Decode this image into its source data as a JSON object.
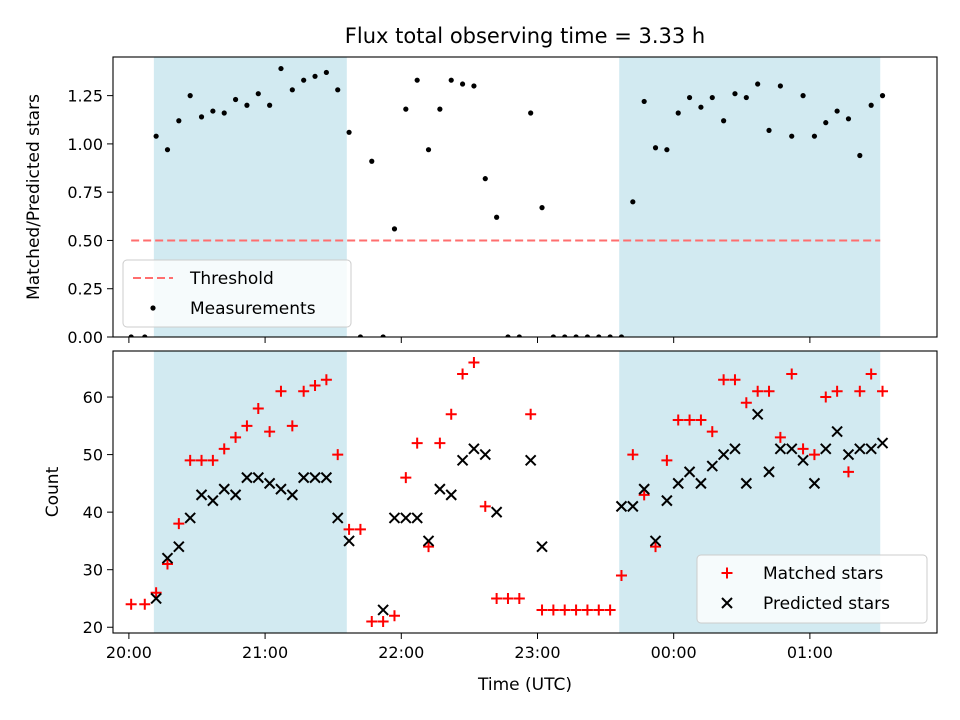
{
  "title": "Flux total observing time = 3.33 h",
  "xlabel": "Time (UTC)",
  "colors": {
    "shade": "#add8e6",
    "threshold": "#ff6e6e",
    "measurement": "#000000",
    "matched": "#ff0000",
    "predicted": "#000000"
  },
  "chart_data": [
    {
      "type": "scatter",
      "ylabel": "Matched/Predicted stars",
      "xlim": [
        "19:53",
        "01:56"
      ],
      "ylim": [
        0,
        1.45
      ],
      "yticks": [
        "0.00",
        "0.25",
        "0.50",
        "0.75",
        "1.00",
        "1.25"
      ],
      "xticks": [
        "20:00",
        "21:00",
        "22:00",
        "23:00",
        "00:00",
        "01:00"
      ],
      "shaded_spans": [
        [
          "20:11",
          "21:36"
        ],
        [
          "23:36",
          "01:31"
        ]
      ],
      "legend": {
        "placement": "lower-left",
        "entries": [
          "Threshold",
          "Measurements"
        ]
      },
      "series": [
        {
          "name": "Threshold",
          "kind": "dashed-line",
          "x": [
            "20:01",
            "01:31"
          ],
          "y": [
            0.5,
            0.5
          ]
        },
        {
          "name": "Measurements",
          "kind": "dots",
          "x": [
            "20:01",
            "20:07",
            "20:12",
            "20:17",
            "20:22",
            "20:27",
            "20:32",
            "20:37",
            "20:42",
            "20:47",
            "20:52",
            "20:57",
            "21:02",
            "21:07",
            "21:12",
            "21:17",
            "21:22",
            "21:27",
            "21:32",
            "21:37",
            "21:42",
            "21:47",
            "21:52",
            "21:57",
            "22:02",
            "22:07",
            "22:12",
            "22:17",
            "22:22",
            "22:27",
            "22:32",
            "22:37",
            "22:42",
            "22:47",
            "22:52",
            "22:57",
            "23:02",
            "23:07",
            "23:12",
            "23:17",
            "23:22",
            "23:27",
            "23:32",
            "23:37",
            "23:42",
            "23:47",
            "23:52",
            "23:57",
            "00:02",
            "00:07",
            "00:12",
            "00:17",
            "00:22",
            "00:27",
            "00:32",
            "00:37",
            "00:42",
            "00:47",
            "00:52",
            "00:57",
            "01:02",
            "01:07",
            "01:12",
            "01:17",
            "01:22",
            "01:27",
            "01:32"
          ],
          "y": [
            0.0,
            0.0,
            1.04,
            0.97,
            1.12,
            1.25,
            1.14,
            1.17,
            1.16,
            1.23,
            1.2,
            1.26,
            1.2,
            1.39,
            1.28,
            1.33,
            1.35,
            1.37,
            1.28,
            1.06,
            0.0,
            0.91,
            0.0,
            0.56,
            1.18,
            1.33,
            0.97,
            1.18,
            1.33,
            1.31,
            1.3,
            0.82,
            0.62,
            0.0,
            0.0,
            1.16,
            0.67,
            0.0,
            0.0,
            0.0,
            0.0,
            0.0,
            0.0,
            0.0,
            0.7,
            1.22,
            0.98,
            0.97,
            1.16,
            1.24,
            1.19,
            1.24,
            1.12,
            1.26,
            1.24,
            1.31,
            1.07,
            1.3,
            1.04,
            1.25,
            1.04,
            1.11,
            1.17,
            1.13,
            0.94,
            1.2,
            1.25
          ]
        }
      ]
    },
    {
      "type": "scatter",
      "ylabel": "Count",
      "xlim": [
        "19:53",
        "01:56"
      ],
      "ylim": [
        19,
        68
      ],
      "yticks": [
        "20",
        "30",
        "40",
        "50",
        "60"
      ],
      "xticks": [
        "20:00",
        "21:00",
        "22:00",
        "23:00",
        "00:00",
        "01:00"
      ],
      "shaded_spans": [
        [
          "20:11",
          "21:36"
        ],
        [
          "23:36",
          "01:31"
        ]
      ],
      "legend": {
        "placement": "lower-right",
        "entries": [
          "Matched stars",
          "Predicted stars"
        ]
      },
      "series": [
        {
          "name": "Matched stars",
          "kind": "plus",
          "x": [
            "20:01",
            "20:07",
            "20:12",
            "20:17",
            "20:22",
            "20:27",
            "20:32",
            "20:37",
            "20:42",
            "20:47",
            "20:52",
            "20:57",
            "21:02",
            "21:07",
            "21:12",
            "21:17",
            "21:22",
            "21:27",
            "21:32",
            "21:37",
            "21:42",
            "21:47",
            "21:52",
            "21:57",
            "22:02",
            "22:07",
            "22:12",
            "22:17",
            "22:22",
            "22:27",
            "22:32",
            "22:37",
            "22:42",
            "22:47",
            "22:52",
            "22:57",
            "23:02",
            "23:07",
            "23:12",
            "23:17",
            "23:22",
            "23:27",
            "23:32",
            "23:37",
            "23:42",
            "23:47",
            "23:52",
            "23:57",
            "00:02",
            "00:07",
            "00:12",
            "00:17",
            "00:22",
            "00:27",
            "00:32",
            "00:37",
            "00:42",
            "00:47",
            "00:52",
            "00:57",
            "01:02",
            "01:07",
            "01:12",
            "01:17",
            "01:22",
            "01:27",
            "01:32"
          ],
          "y": [
            24,
            24,
            26,
            31,
            38,
            49,
            49,
            49,
            51,
            53,
            55,
            58,
            54,
            61,
            55,
            61,
            62,
            63,
            50,
            37,
            37,
            21,
            21,
            22,
            46,
            52,
            34,
            52,
            57,
            64,
            66,
            41,
            25,
            25,
            25,
            57,
            23,
            23,
            23,
            23,
            23,
            23,
            23,
            29,
            50,
            43,
            34,
            49,
            56,
            56,
            56,
            54,
            63,
            63,
            59,
            61,
            61,
            53,
            64,
            51,
            50,
            60,
            61,
            47,
            61,
            64,
            61
          ]
        },
        {
          "name": "Predicted stars",
          "kind": "cross",
          "x": [
            "20:12",
            "20:17",
            "20:22",
            "20:27",
            "20:32",
            "20:37",
            "20:42",
            "20:47",
            "20:52",
            "20:57",
            "21:02",
            "21:07",
            "21:12",
            "21:17",
            "21:22",
            "21:27",
            "21:32",
            "21:37",
            "21:52",
            "21:57",
            "22:02",
            "22:07",
            "22:12",
            "22:17",
            "22:22",
            "22:27",
            "22:32",
            "22:37",
            "22:42",
            "22:57",
            "23:02",
            "23:37",
            "23:42",
            "23:47",
            "23:52",
            "23:57",
            "00:02",
            "00:07",
            "00:12",
            "00:17",
            "00:22",
            "00:27",
            "00:32",
            "00:37",
            "00:42",
            "00:47",
            "00:52",
            "00:57",
            "01:02",
            "01:07",
            "01:12",
            "01:17",
            "01:22",
            "01:27",
            "01:32"
          ],
          "y": [
            25,
            32,
            34,
            39,
            43,
            42,
            44,
            43,
            46,
            46,
            45,
            44,
            43,
            46,
            46,
            46,
            39,
            35,
            23,
            39,
            39,
            39,
            35,
            44,
            43,
            49,
            51,
            50,
            40,
            49,
            34,
            41,
            41,
            44,
            35,
            42,
            45,
            47,
            45,
            48,
            50,
            51,
            45,
            57,
            47,
            51,
            51,
            49,
            45,
            51,
            54,
            50,
            51,
            51,
            52
          ]
        }
      ]
    }
  ]
}
